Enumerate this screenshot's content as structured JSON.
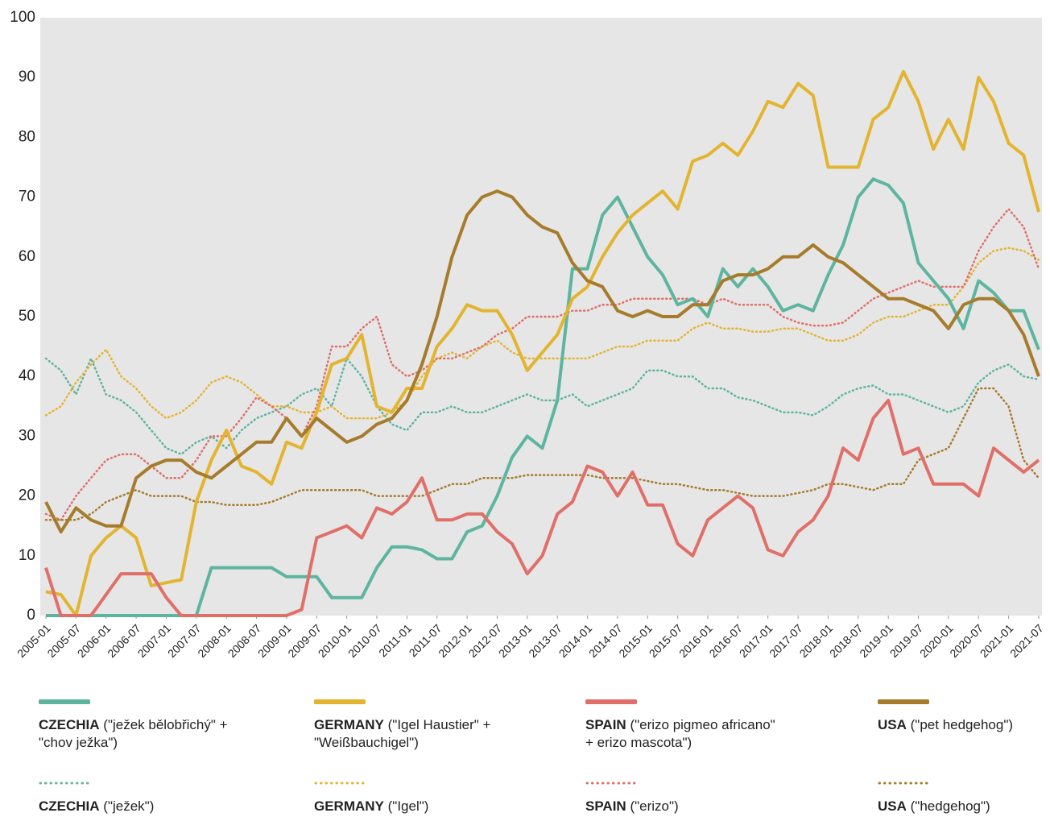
{
  "chart_data": {
    "type": "line",
    "x": [
      "2005-01",
      "2005-04",
      "2005-07",
      "2005-10",
      "2006-01",
      "2006-04",
      "2006-07",
      "2006-10",
      "2007-01",
      "2007-04",
      "2007-07",
      "2007-10",
      "2008-01",
      "2008-04",
      "2008-07",
      "2008-10",
      "2009-01",
      "2009-04",
      "2009-07",
      "2009-10",
      "2010-01",
      "2010-04",
      "2010-07",
      "2010-10",
      "2011-01",
      "2011-04",
      "2011-07",
      "2011-10",
      "2012-01",
      "2012-04",
      "2012-07",
      "2012-10",
      "2013-01",
      "2013-04",
      "2013-07",
      "2013-10",
      "2014-01",
      "2014-04",
      "2014-07",
      "2014-10",
      "2015-01",
      "2015-04",
      "2015-07",
      "2015-10",
      "2016-01",
      "2016-04",
      "2016-07",
      "2016-10",
      "2017-01",
      "2017-04",
      "2017-07",
      "2017-10",
      "2018-01",
      "2018-04",
      "2018-07",
      "2018-10",
      "2019-01",
      "2019-04",
      "2019-07",
      "2019-10",
      "2020-01",
      "2020-04",
      "2020-07",
      "2020-10",
      "2021-01",
      "2021-04",
      "2021-07"
    ],
    "xlim": [
      "2005-01",
      "2021-07"
    ],
    "xticks": [
      "2005-01",
      "2005-07",
      "2006-01",
      "2006-07",
      "2007-01",
      "2007-07",
      "2008-01",
      "2008-07",
      "2009-01",
      "2009-07",
      "2010-01",
      "2010-07",
      "2011-01",
      "2011-07",
      "2012-01",
      "2012-07",
      "2013-01",
      "2013-07",
      "2014-01",
      "2014-07",
      "2015-01",
      "2015-07",
      "2016-01",
      "2016-07",
      "2017-01",
      "2017-07",
      "2018-01",
      "2018-07",
      "2019-01",
      "2019-07",
      "2020-01",
      "2020-07",
      "2021-01",
      "2021-07"
    ],
    "ylim": [
      0,
      100
    ],
    "yticks": [
      0,
      10,
      20,
      30,
      40,
      50,
      60,
      70,
      80,
      90,
      100
    ],
    "series": [
      {
        "name": "CZECHIA",
        "term": "(\"ježek bělobřichý\" + \"chov ježka\")",
        "color": "#5db5a0",
        "dash": "solid",
        "values": [
          0,
          0,
          0,
          0,
          0,
          0,
          0,
          0,
          0,
          0,
          0,
          8,
          8,
          8,
          8,
          8,
          6.5,
          6.5,
          6.5,
          3,
          3,
          3,
          8,
          11.5,
          11.5,
          11,
          9.5,
          9.5,
          14,
          15,
          20,
          26.5,
          30,
          28,
          36,
          58,
          58,
          67,
          70,
          65,
          60,
          57,
          52,
          53,
          50,
          58,
          55,
          58,
          55,
          51,
          52,
          51,
          57,
          62,
          70,
          73,
          72,
          69,
          59,
          56,
          53,
          48,
          56,
          54,
          51,
          51,
          44.5
        ]
      },
      {
        "name": "GERMANY",
        "term": "(\"Igel Haustier\" + \"Weißbauchigel\")",
        "color": "#e3b42f",
        "dash": "solid",
        "values": [
          4,
          3.5,
          0,
          10,
          13,
          15,
          13,
          5,
          5.5,
          6,
          19,
          26,
          31,
          25,
          24,
          22,
          29,
          28,
          34,
          42,
          43,
          47,
          35,
          34,
          38,
          38,
          45,
          48,
          52,
          51,
          51,
          47,
          41,
          44,
          47,
          53,
          55,
          60,
          64,
          67,
          69,
          71,
          68,
          76,
          77,
          79,
          77,
          81,
          86,
          85,
          89,
          87,
          75,
          75,
          75,
          83,
          85,
          91,
          86,
          78,
          83,
          78,
          90,
          86,
          79,
          77,
          67.5
        ]
      },
      {
        "name": "SPAIN",
        "term": "(\"erizo pigmeo africano\" + erizo mascota\")",
        "color": "#e06f69",
        "dash": "solid",
        "values": [
          8,
          0,
          0,
          0,
          3.5,
          7,
          7,
          7,
          3,
          0,
          0,
          0,
          0,
          0,
          0,
          0,
          0,
          1,
          13,
          14,
          15,
          13,
          18,
          17,
          19,
          23,
          16,
          16,
          17,
          17,
          14,
          12,
          7,
          10,
          17,
          19,
          25,
          24,
          20,
          24,
          18.5,
          18.5,
          12,
          10,
          16,
          18,
          20,
          18,
          11,
          10,
          14,
          16,
          20,
          28,
          26,
          33,
          36,
          27,
          28,
          22,
          22,
          22,
          20,
          28,
          26,
          24,
          26
        ]
      },
      {
        "name": "USA",
        "term": "(\"pet hedgehog\")",
        "color": "#a67b2b",
        "dash": "solid",
        "values": [
          19,
          14,
          18,
          16,
          15,
          15,
          23,
          25,
          26,
          26,
          24,
          23,
          25,
          27,
          29,
          29,
          33,
          30,
          33,
          31,
          29,
          30,
          32,
          33,
          36,
          42,
          50,
          60,
          67,
          70,
          71,
          70,
          67,
          65,
          64,
          59,
          56,
          55,
          51,
          50,
          51,
          50,
          50,
          52,
          52,
          56,
          57,
          57,
          58,
          60,
          60,
          62,
          60,
          59,
          57,
          55,
          53,
          53,
          52,
          51,
          48,
          52,
          53,
          53,
          51,
          47,
          40
        ]
      },
      {
        "name": "CZECHIA",
        "term": "(\"ježek\")",
        "color": "#5db5a0",
        "dash": "dotted",
        "values": [
          43,
          41,
          37,
          43,
          37,
          36,
          34,
          31,
          28,
          27,
          29,
          30,
          28,
          31,
          33,
          34,
          35,
          37,
          38,
          35,
          43,
          40,
          35,
          32,
          31,
          34,
          34,
          35,
          34,
          34,
          35,
          36,
          37,
          36,
          36,
          37,
          35,
          36,
          37,
          38,
          41,
          41,
          40,
          40,
          38,
          38,
          36.5,
          36,
          35,
          34,
          34,
          33.5,
          35,
          37,
          38,
          38.5,
          37,
          37,
          36,
          35,
          34,
          35,
          39,
          41,
          42,
          40,
          39.5
        ]
      },
      {
        "name": "GERMANY",
        "term": "(\"Igel\")",
        "color": "#e3b42f",
        "dash": "dotted",
        "values": [
          33.5,
          35,
          39,
          42,
          44.5,
          40,
          38,
          35,
          33,
          34,
          36,
          39,
          40,
          39,
          37,
          35,
          35,
          34,
          34,
          35,
          33,
          33,
          33,
          34,
          36,
          40,
          43,
          44,
          43,
          45,
          46,
          44,
          43,
          43,
          43,
          43,
          43,
          44,
          45,
          45,
          46,
          46,
          46,
          48,
          49,
          48,
          48,
          47.5,
          47.5,
          48,
          48,
          47,
          46,
          46,
          47,
          49,
          50,
          50,
          51,
          52,
          52,
          55,
          59,
          61,
          61.5,
          61,
          59.5
        ]
      },
      {
        "name": "SPAIN",
        "term": "(\"erizo\")",
        "color": "#e06f69",
        "dash": "dotted",
        "values": [
          17,
          16,
          20,
          23,
          26,
          27,
          27,
          25,
          23,
          23,
          26,
          30,
          30,
          33,
          36.5,
          35,
          33,
          30,
          35,
          45,
          45,
          48,
          50,
          42,
          40,
          41,
          43,
          43,
          44,
          45,
          47,
          48,
          50,
          50,
          50,
          51,
          51,
          52,
          52,
          53,
          53,
          53,
          53,
          53,
          52,
          53,
          52,
          52,
          52,
          50,
          49,
          48.5,
          48.5,
          49,
          51,
          53,
          54,
          55,
          56,
          55,
          55,
          55,
          61,
          65,
          68,
          65,
          58
        ]
      },
      {
        "name": "USA",
        "term": "(\"hedgehog\")",
        "color": "#a67b2b",
        "dash": "dotted",
        "values": [
          16,
          16,
          16,
          17,
          19,
          20,
          21,
          20,
          20,
          20,
          19,
          19,
          18.5,
          18.5,
          18.5,
          19,
          20,
          21,
          21,
          21,
          21,
          21,
          20,
          20,
          20,
          20,
          21,
          22,
          22,
          23,
          23,
          23,
          23.5,
          23.5,
          23.5,
          23.5,
          23.5,
          23,
          23,
          23,
          22.5,
          22,
          22,
          21.5,
          21,
          21,
          20.5,
          20,
          20,
          20,
          20.5,
          21,
          22,
          22,
          21.5,
          21,
          22,
          22,
          26,
          27,
          28,
          33,
          38,
          38,
          35,
          26,
          23
        ]
      }
    ]
  }
}
